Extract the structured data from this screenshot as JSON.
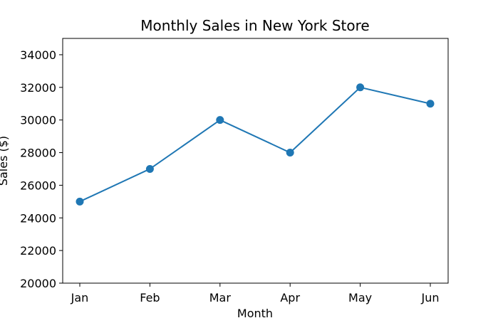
{
  "chart_data": {
    "type": "line",
    "title": "Monthly Sales in New York Store",
    "xlabel": "Month",
    "ylabel": "Sales ($)",
    "categories": [
      "Jan",
      "Feb",
      "Mar",
      "Apr",
      "May",
      "Jun"
    ],
    "series": [
      {
        "values": [
          25000,
          27000,
          30000,
          28000,
          32000,
          31000
        ],
        "color": "#1f77b4",
        "marker": "circle"
      }
    ],
    "ylim": [
      20000,
      35000
    ],
    "yticks": [
      20000,
      22000,
      24000,
      26000,
      28000,
      30000,
      32000,
      34000
    ],
    "grid": false,
    "legend": "none"
  }
}
